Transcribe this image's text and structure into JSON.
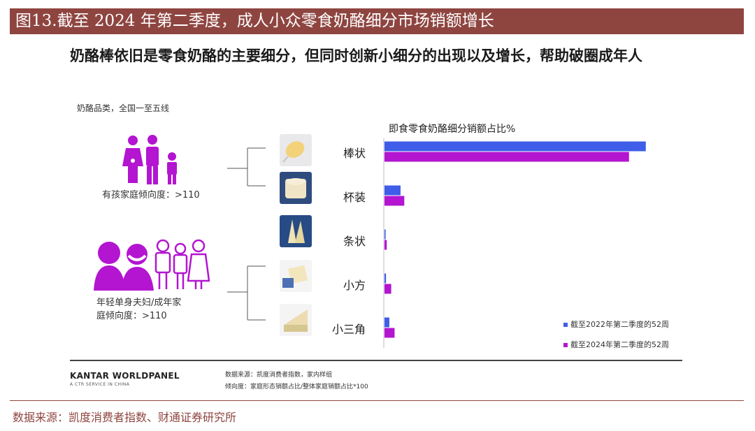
{
  "header": {
    "title": "图13.截至 2024 年第二季度，成人小众零食奶酪细分市场销额增长"
  },
  "card": {
    "title": "奶酪棒依旧是零食奶酪的主要细分，但同时创新小细分的出现以及增长，帮助破圈成年人",
    "subtitle": "奶酪品类，全国一至五线",
    "segments": {
      "family": "有孩家庭倾向度：>110",
      "adult_line1": "年轻单身夫妇/成年家",
      "adult_line2": "庭倾向度：>110"
    },
    "brand": {
      "name": "KANTAR WORLDPANEL",
      "tagline": "A CTR SERVICE IN CHINA"
    },
    "notes": {
      "source": "数据来源：凯度消费者指数，家内样组",
      "index": "倾向度：家庭形态销额占比/整体家庭销额占比*100"
    }
  },
  "chart_data": {
    "type": "bar",
    "orientation": "horizontal",
    "title": "即食零食奶酪细分销额占比%",
    "categories": [
      "棒状",
      "杯装",
      "条状",
      "小方",
      "小三角"
    ],
    "series": [
      {
        "name": "截至2022年第二季度的52周",
        "color": "#3f5de8",
        "values": [
          70,
          4.3,
          0.3,
          0.4,
          1.3
        ]
      },
      {
        "name": "截至2024年第二季度的52周",
        "color": "#b315d1",
        "values": [
          65.5,
          5.3,
          0.6,
          1.8,
          2.7
        ]
      }
    ],
    "xlim": [
      0,
      100
    ],
    "grid": false,
    "legend_position": "bottom-right"
  },
  "colors": {
    "header_bg": "#8e4540",
    "icon_purple": "#b315d1"
  },
  "footer": {
    "source": "数据来源：凯度消费者指数、财通证券研究所"
  }
}
